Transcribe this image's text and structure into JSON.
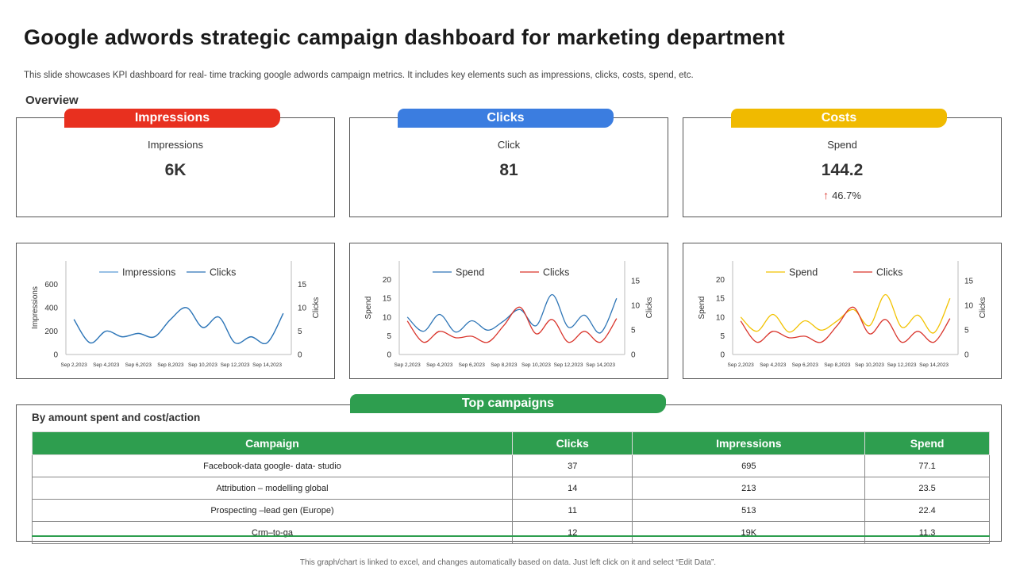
{
  "header": {
    "title": "Google adwords strategic campaign dashboard for marketing department",
    "subtitle": "This slide showcases KPI dashboard for real- time tracking google adwords campaign metrics. It includes key elements such as impressions, clicks, costs, spend, etc."
  },
  "overview": "Overview",
  "kpis": [
    {
      "tab": "Impressions",
      "caption": "Impressions",
      "value": "6K",
      "color": "#e8301f"
    },
    {
      "tab": "Clicks",
      "caption": "Click",
      "value": "81",
      "color": "#3b7de0"
    },
    {
      "tab": "Costs",
      "caption": "Spend",
      "value": "144.2",
      "change": "46.7%",
      "color": "#f0ba00"
    }
  ],
  "chart_data": [
    {
      "type": "line",
      "legend": "top",
      "categories": [
        "Sep 2,2023",
        null,
        "Sep 4,2023",
        null,
        "Sep 6,2023",
        null,
        "Sep 8,2023",
        null,
        "Sep 10,2023",
        null,
        "Sep 12,2023",
        null,
        "Sep 14,2023",
        null
      ],
      "y_label": "Impressions",
      "y2_label": "Clicks",
      "ylim": [
        0,
        800
      ],
      "yticks": [
        0,
        200,
        400,
        600
      ],
      "y2lim": [
        0,
        20
      ],
      "y2ticks": [
        0,
        5,
        10,
        15
      ],
      "series": [
        {
          "name": "Impressions",
          "color": "#5b9bd5",
          "values": [
            300,
            100,
            200,
            150,
            180,
            150,
            300,
            400,
            230,
            320,
            100,
            150,
            100,
            350
          ]
        },
        {
          "name": "Clicks",
          "color": "#2e75b6",
          "axis": "y2",
          "values": [
            7.5,
            2.5,
            5,
            3.8,
            4.5,
            3.8,
            7.5,
            10,
            5.8,
            8,
            2.5,
            3.8,
            2.5,
            8.8
          ]
        }
      ]
    },
    {
      "type": "line",
      "legend": "top",
      "categories": [
        "Sep 2,2023",
        null,
        "Sep 4,2023",
        null,
        "Sep 6,2023",
        null,
        "Sep 8,2023",
        null,
        "Sep 10,2023",
        null,
        "Sep 12,2023",
        null,
        "Sep 14,2023",
        null
      ],
      "y_label": "Spend",
      "y2_label": "Clicks",
      "ylim": [
        0,
        25
      ],
      "yticks": [
        0,
        5,
        10,
        15,
        20
      ],
      "y2lim": [
        0,
        19
      ],
      "y2ticks": [
        0,
        5,
        10,
        15
      ],
      "series": [
        {
          "name": "Spend",
          "color": "#2e75b6",
          "values": [
            10,
            6.2,
            10.7,
            6,
            9,
            6.5,
            9,
            12,
            7.7,
            16,
            7.3,
            10.5,
            5.8,
            15
          ]
        },
        {
          "name": "Clicks",
          "color": "#d9342b",
          "axis": "y2",
          "values": [
            6.8,
            2.5,
            4.7,
            3.4,
            3.7,
            2.5,
            5.9,
            9.6,
            4.2,
            7.1,
            2.5,
            4.7,
            2.5,
            7.3
          ]
        }
      ]
    },
    {
      "type": "line",
      "legend": "top",
      "categories": [
        "Sep 2,2023",
        null,
        "Sep 4,2023",
        null,
        "Sep 6,2023",
        null,
        "Sep 8,2023",
        null,
        "Sep 10,2023",
        null,
        "Sep 12,2023",
        null,
        "Sep 14,2023",
        null
      ],
      "y_label": "Spend",
      "y2_label": "Clicks",
      "ylim": [
        0,
        25
      ],
      "yticks": [
        0,
        5,
        10,
        15,
        20
      ],
      "y2lim": [
        0,
        19
      ],
      "y2ticks": [
        0,
        5,
        10,
        15
      ],
      "series": [
        {
          "name": "Spend",
          "color": "#f2c200",
          "values": [
            10,
            6.2,
            10.7,
            6,
            9,
            6.5,
            9,
            12,
            7.7,
            16,
            7.3,
            10.5,
            5.8,
            15
          ]
        },
        {
          "name": "Clicks",
          "color": "#d9342b",
          "axis": "y2",
          "values": [
            6.8,
            2.5,
            4.7,
            3.4,
            3.7,
            2.5,
            5.9,
            9.6,
            4.2,
            7.1,
            2.5,
            4.7,
            2.5,
            7.3
          ]
        }
      ]
    }
  ],
  "campaigns": {
    "tab": "Top campaigns",
    "subtitle": "By amount spent and cost/action",
    "columns": [
      "Campaign",
      "Clicks",
      "Impressions",
      "Spend"
    ],
    "rows": [
      [
        "Facebook-data google- data- studio",
        "37",
        "695",
        "77.1"
      ],
      [
        "Attribution – modelling  global",
        "14",
        "213",
        "23.5"
      ],
      [
        "Prospecting –lead gen (Europe)",
        "11",
        "513",
        "22.4"
      ],
      [
        "Crm–to-ga",
        "12",
        "19K",
        "11.3"
      ]
    ]
  },
  "footer": "This graph/chart is linked to excel, and changes automatically based on data. Just left click on it and select “Edit Data”."
}
